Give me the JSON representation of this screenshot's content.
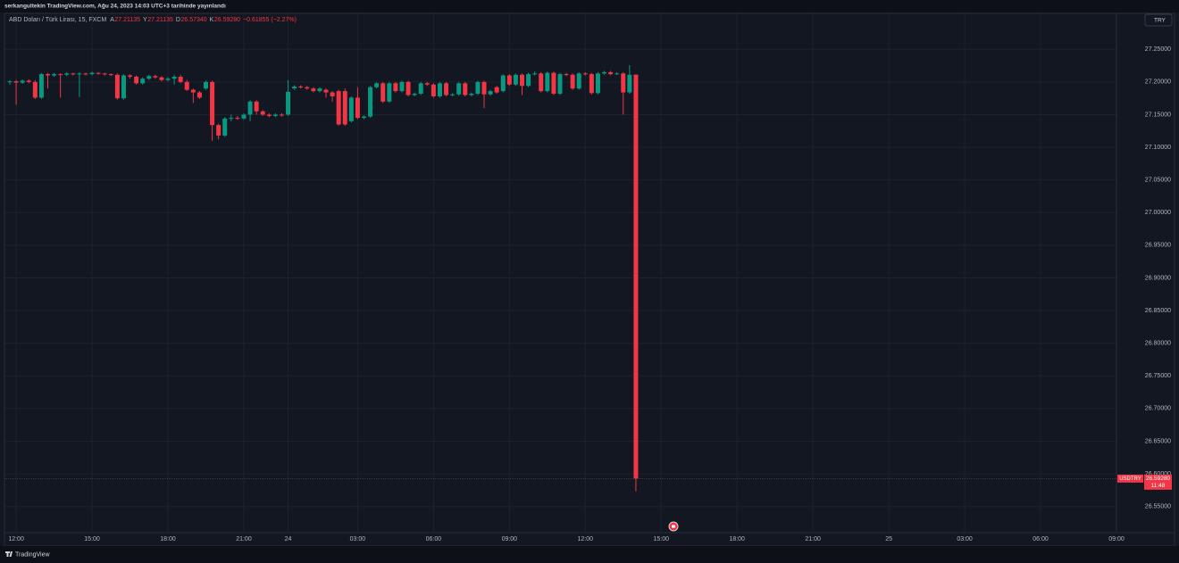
{
  "chart_data": {
    "type": "candlestick",
    "published_by": "serkangultekin TradingView.com, Ağu 24, 2023 14:03 UTC+3 tarihinde yayınlandı",
    "title": "ABD Doları / Türk Lirası, 15, FXCM",
    "legend": {
      "labels": [
        "A",
        "Y",
        "D",
        "K"
      ],
      "value_labels": [
        "27.21135",
        "27.21135",
        "26.57340",
        "26.59280"
      ],
      "change": "−0.61855 (−2.27%)"
    },
    "symbol": "USDTRY",
    "countdown": "11:48",
    "currency": "TRY",
    "brand": "TradingView",
    "up_color": "#089981",
    "down_color": "#f23645",
    "grid": true,
    "open": [
      27.2,
      27.201,
      27.199,
      27.202,
      27.2,
      27.176,
      27.212,
      27.21,
      27.212,
      27.211,
      27.213,
      27.212,
      27.213,
      27.212,
      27.214,
      27.213,
      27.212,
      27.211,
      27.175,
      27.21,
      27.208,
      27.198,
      27.205,
      27.209,
      27.207,
      27.203,
      27.205,
      27.208,
      27.2,
      27.188,
      27.184,
      27.19,
      27.2,
      27.134,
      27.118,
      27.144,
      27.145,
      27.144,
      27.15,
      27.17,
      27.155,
      27.15,
      27.148,
      27.15,
      27.15,
      27.19,
      27.193,
      27.192,
      27.19,
      27.186,
      27.188,
      27.184,
      27.186,
      27.186,
      27.14,
      27.176,
      27.145,
      27.147,
      27.192,
      27.198,
      27.17,
      27.198,
      27.186,
      27.2,
      27.18,
      27.182,
      27.198,
      27.196,
      27.178,
      27.198,
      27.18,
      27.181,
      27.198,
      27.18,
      27.182,
      27.2,
      27.181,
      27.192,
      27.186,
      27.21,
      27.196,
      27.211,
      27.194,
      27.212,
      27.213,
      27.186,
      27.214,
      27.182,
      27.212,
      27.211,
      27.19,
      27.213,
      27.212,
      27.183,
      27.213,
      27.215,
      27.212,
      27.213,
      27.184,
      27.21135
    ],
    "high": [
      27.203,
      27.203,
      27.204,
      27.204,
      27.203,
      27.214,
      27.214,
      27.214,
      27.213,
      27.215,
      27.214,
      27.215,
      27.214,
      27.216,
      27.215,
      27.214,
      27.213,
      27.213,
      27.212,
      27.212,
      27.21,
      27.207,
      27.211,
      27.211,
      27.209,
      27.207,
      27.211,
      27.211,
      27.203,
      27.19,
      27.186,
      27.202,
      27.202,
      27.136,
      27.146,
      27.15,
      27.148,
      27.152,
      27.172,
      27.172,
      27.157,
      27.152,
      27.152,
      27.152,
      27.203,
      27.195,
      27.195,
      27.194,
      27.192,
      27.192,
      27.19,
      27.186,
      27.188,
      27.19,
      27.178,
      27.192,
      27.149,
      27.194,
      27.2,
      27.2,
      27.2,
      27.2,
      27.202,
      27.202,
      27.184,
      27.2,
      27.2,
      27.198,
      27.2,
      27.2,
      27.183,
      27.2,
      27.2,
      27.184,
      27.202,
      27.202,
      27.188,
      27.194,
      27.212,
      27.212,
      27.213,
      27.213,
      27.214,
      27.216,
      27.215,
      27.216,
      27.216,
      27.214,
      27.214,
      27.213,
      27.215,
      27.215,
      27.214,
      27.215,
      27.217,
      27.217,
      27.215,
      27.215,
      27.226,
      27.21135
    ],
    "low": [
      27.196,
      27.165,
      27.197,
      27.198,
      27.174,
      27.174,
      27.19,
      27.208,
      27.176,
      27.209,
      27.21,
      27.177,
      27.21,
      27.21,
      27.211,
      27.21,
      27.209,
      27.173,
      27.173,
      27.205,
      27.196,
      27.196,
      27.203,
      27.205,
      27.201,
      27.201,
      27.196,
      27.198,
      27.186,
      27.168,
      27.174,
      27.188,
      27.11,
      27.112,
      27.116,
      27.14,
      27.142,
      27.142,
      27.14,
      27.15,
      27.148,
      27.146,
      27.146,
      27.147,
      27.148,
      27.188,
      27.19,
      27.188,
      27.184,
      27.184,
      27.176,
      27.17,
      27.133,
      27.133,
      27.138,
      27.143,
      27.143,
      27.145,
      27.19,
      27.168,
      27.168,
      27.184,
      27.184,
      27.178,
      27.178,
      27.18,
      27.194,
      27.176,
      27.176,
      27.178,
      27.178,
      27.179,
      27.178,
      27.178,
      27.18,
      27.16,
      27.179,
      27.182,
      27.184,
      27.194,
      27.194,
      27.18,
      27.192,
      27.21,
      27.184,
      27.184,
      27.18,
      27.18,
      27.209,
      27.188,
      27.188,
      27.21,
      27.181,
      27.181,
      27.211,
      27.21,
      27.211,
      27.15,
      27.182,
      26.5734
    ],
    "close": [
      27.201,
      27.199,
      27.202,
      27.2,
      27.176,
      27.212,
      27.21,
      27.212,
      27.211,
      27.213,
      27.212,
      27.213,
      27.212,
      27.214,
      27.213,
      27.212,
      27.211,
      27.175,
      27.21,
      27.208,
      27.198,
      27.205,
      27.209,
      27.207,
      27.203,
      27.205,
      27.208,
      27.2,
      27.188,
      27.184,
      27.176,
      27.2,
      27.134,
      27.118,
      27.144,
      27.145,
      27.144,
      27.15,
      27.17,
      27.155,
      27.15,
      27.148,
      27.15,
      27.149,
      27.185,
      27.193,
      27.192,
      27.19,
      27.186,
      27.19,
      27.184,
      27.178,
      27.135,
      27.135,
      27.176,
      27.145,
      27.147,
      27.192,
      27.198,
      27.17,
      27.198,
      27.186,
      27.2,
      27.18,
      27.182,
      27.198,
      27.196,
      27.178,
      27.198,
      27.18,
      27.181,
      27.198,
      27.18,
      27.182,
      27.2,
      27.181,
      27.186,
      27.184,
      27.21,
      27.196,
      27.211,
      27.194,
      27.212,
      27.213,
      27.186,
      27.214,
      27.182,
      27.212,
      27.211,
      27.19,
      27.213,
      27.212,
      27.183,
      27.213,
      27.215,
      27.212,
      27.213,
      27.184,
      27.211,
      26.5928
    ],
    "xlim": [
      -0.85,
      175
    ],
    "xticks": [
      {
        "value": 1,
        "label": "12:00"
      },
      {
        "value": 13,
        "label": "15:00"
      },
      {
        "value": 25,
        "label": "18:00"
      },
      {
        "value": 37,
        "label": "21:00"
      },
      {
        "value": 44,
        "label": "24"
      },
      {
        "value": 55,
        "label": "03:00"
      },
      {
        "value": 67,
        "label": "06:00"
      },
      {
        "value": 79,
        "label": "09:00"
      },
      {
        "value": 91,
        "label": "12:00"
      },
      {
        "value": 103,
        "label": "15:00"
      },
      {
        "value": 115,
        "label": "18:00"
      },
      {
        "value": 127,
        "label": "21:00"
      },
      {
        "value": 139,
        "label": "25"
      },
      {
        "value": 151,
        "label": "03:00"
      },
      {
        "value": 163,
        "label": "06:00"
      },
      {
        "value": 175,
        "label": "09:00"
      }
    ],
    "ylim": [
      26.51,
      27.305
    ],
    "yticks": [
      {
        "value": 26.55,
        "label": "26.55000"
      },
      {
        "value": 26.6,
        "label": "26.60000"
      },
      {
        "value": 26.65,
        "label": "26.65000"
      },
      {
        "value": 26.7,
        "label": "26.70000"
      },
      {
        "value": 26.75,
        "label": "26.75000"
      },
      {
        "value": 26.8,
        "label": "26.80000"
      },
      {
        "value": 26.85,
        "label": "26.85000"
      },
      {
        "value": 26.9,
        "label": "26.90000"
      },
      {
        "value": 26.95,
        "label": "26.95000"
      },
      {
        "value": 27.0,
        "label": "27.00000"
      },
      {
        "value": 27.05,
        "label": "27.05000"
      },
      {
        "value": 27.1,
        "label": "27.10000"
      },
      {
        "value": 27.15,
        "label": "27.15000"
      },
      {
        "value": 27.2,
        "label": "27.20000"
      },
      {
        "value": 27.25,
        "label": "27.25000"
      }
    ]
  }
}
